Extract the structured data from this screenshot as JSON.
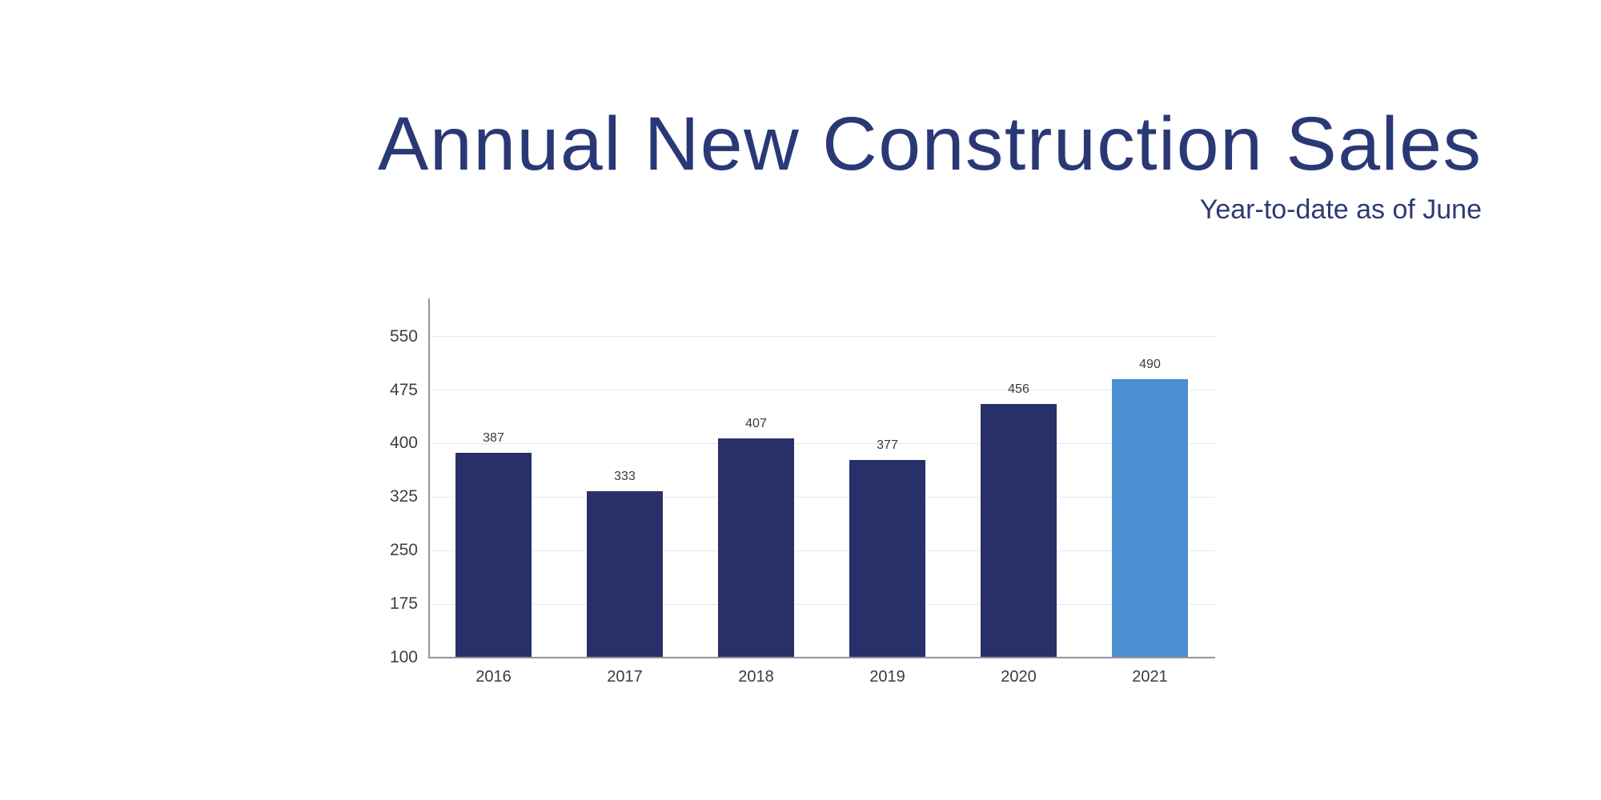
{
  "chart_data": {
    "type": "bar",
    "title": "Annual New Construction Sales",
    "subtitle": "Year-to-date as of June",
    "categories": [
      "2016",
      "2017",
      "2018",
      "2019",
      "2020",
      "2021"
    ],
    "values": [
      387,
      333,
      407,
      377,
      456,
      490
    ],
    "highlight_index": 5,
    "yticks": [
      550,
      475,
      400,
      325,
      250,
      175,
      100
    ],
    "ylim": [
      100,
      603
    ],
    "xlabel": "",
    "ylabel": "",
    "grid": true,
    "legend_position": "none",
    "colors": {
      "title_text": "#2b3876",
      "subtitle_text": "#2e3a74",
      "bar_default": "#283069",
      "bar_highlight": "#4a8fd0",
      "gridline": "#e5e8ef",
      "axis_line": "#94949c",
      "tick_text": "#3e3e3e",
      "value_label_text": "#3a3a3a",
      "category_text": "#3c3c3c",
      "background": "#ffffff"
    }
  }
}
